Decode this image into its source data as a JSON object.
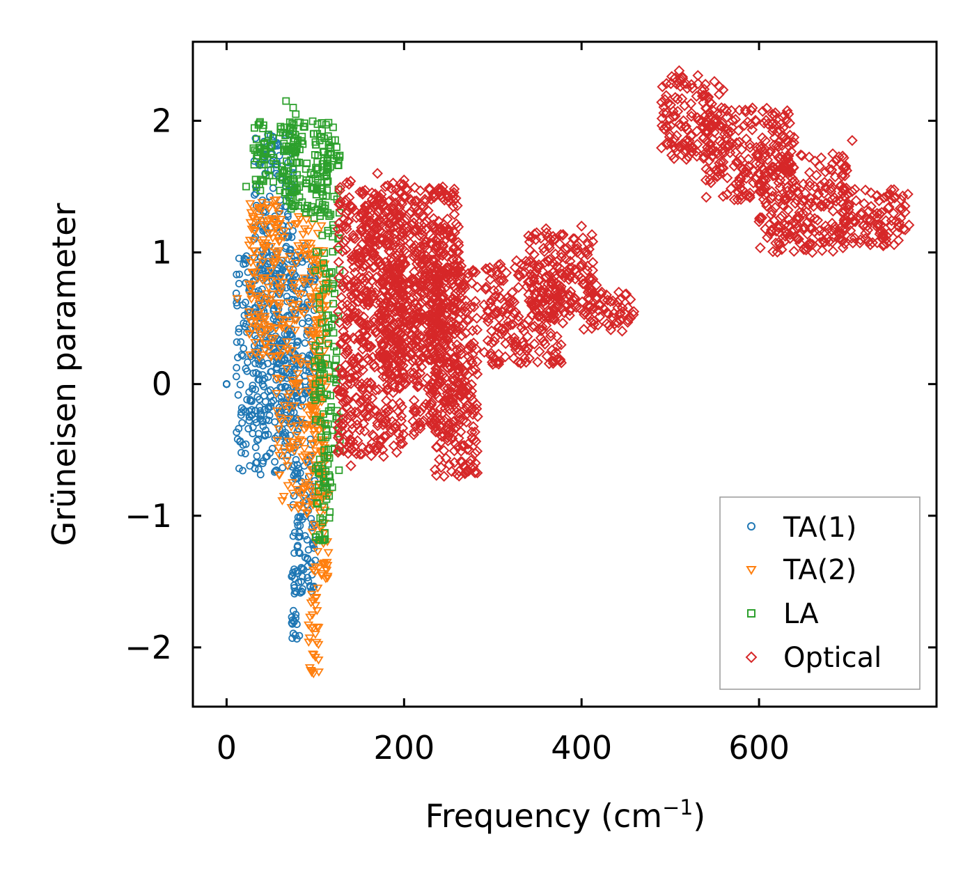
{
  "chart_data": {
    "type": "scatter",
    "title": "",
    "xlabel": "Frequency (cm",
    "xlabel_sup": "−1",
    "xlabel_close": ")",
    "ylabel": "Grüneisen parameter",
    "xlim": [
      -38,
      800
    ],
    "ylim": [
      -2.45,
      2.6
    ],
    "xticks": [
      0,
      200,
      400,
      600
    ],
    "xtick_labels": [
      "0",
      "200",
      "400",
      "600"
    ],
    "yticks": [
      -2,
      -1,
      0,
      1,
      2
    ],
    "ytick_labels": [
      "−2",
      "−1",
      "0",
      "1",
      "2"
    ],
    "legend_position": "lower-right",
    "marker_fill": "none",
    "series": [
      {
        "name": "TA(1)",
        "marker": "circle",
        "color": "#1f77b4",
        "regions": [
          {
            "x": [
              0,
              0
            ],
            "y": [
              0,
              0
            ]
          },
          {
            "x": [
              10,
              80
            ],
            "y": [
              -0.7,
              1.0
            ]
          },
          {
            "x": [
              30,
              75
            ],
            "y": [
              -0.4,
              1.9
            ]
          },
          {
            "x": [
              75,
              100
            ],
            "y": [
              -1.6,
              1.0
            ]
          },
          {
            "x": [
              73,
              82
            ],
            "y": [
              -1.95,
              -1.4
            ]
          }
        ],
        "points": [
          [
            0,
            0
          ],
          [
            12,
            0.65
          ],
          [
            16,
            0.32
          ],
          [
            24,
            0.85
          ],
          [
            26,
            -0.25
          ],
          [
            35,
            1.0
          ],
          [
            38,
            0.2
          ],
          [
            40,
            0.72
          ],
          [
            44,
            -0.35
          ],
          [
            48,
            1.05
          ],
          [
            52,
            1.88
          ],
          [
            58,
            1.82
          ],
          [
            62,
            1.55
          ],
          [
            66,
            1.35
          ],
          [
            70,
            1.12
          ],
          [
            74,
            -1.93
          ],
          [
            76,
            -1.8
          ],
          [
            78,
            -1.75
          ],
          [
            84,
            -1.5
          ],
          [
            88,
            1.05
          ],
          [
            90,
            0.95
          ],
          [
            95,
            0.85
          ],
          [
            98,
            0.4
          ]
        ]
      },
      {
        "name": "TA(2)",
        "marker": "triangle-down",
        "color": "#ff7f0e",
        "regions": [
          {
            "x": [
              25,
              60
            ],
            "y": [
              0.2,
              1.4
            ]
          },
          {
            "x": [
              55,
              110
            ],
            "y": [
              -1.0,
              1.3
            ]
          },
          {
            "x": [
              95,
              115
            ],
            "y": [
              -1.5,
              1.0
            ]
          },
          {
            "x": [
              92,
              104
            ],
            "y": [
              -2.2,
              -1.5
            ]
          }
        ],
        "points": [
          [
            12,
            0.65
          ],
          [
            25,
            0.5
          ],
          [
            40,
            1.38
          ],
          [
            55,
            1.35
          ],
          [
            60,
            1.22
          ],
          [
            80,
            1.22
          ],
          [
            90,
            1.25
          ],
          [
            95,
            -1.85
          ],
          [
            97,
            -2.05
          ],
          [
            98,
            -2.2
          ],
          [
            100,
            -1.9
          ],
          [
            102,
            -1.72
          ]
        ]
      },
      {
        "name": "LA",
        "marker": "square",
        "color": "#2ca02c",
        "regions": [
          {
            "x": [
              30,
              80
            ],
            "y": [
              1.45,
              2.0
            ]
          },
          {
            "x": [
              65,
              115
            ],
            "y": [
              1.3,
              2.0
            ]
          },
          {
            "x": [
              98,
              128
            ],
            "y": [
              -0.8,
              1.95
            ]
          },
          {
            "x": [
              100,
              118
            ],
            "y": [
              -1.2,
              -0.6
            ]
          }
        ],
        "points": [
          [
            22,
            1.5
          ],
          [
            37,
            1.98
          ],
          [
            42,
            1.82
          ],
          [
            53,
            1.72
          ],
          [
            67,
            2.15
          ],
          [
            75,
            2.1
          ],
          [
            78,
            2.05
          ],
          [
            85,
            1.88
          ],
          [
            98,
            1.9
          ],
          [
            105,
            1.85
          ],
          [
            115,
            1.8
          ],
          [
            120,
            1.95
          ]
        ]
      },
      {
        "name": "Optical",
        "marker": "diamond",
        "color": "#d62728",
        "regions": [
          {
            "x": [
              125,
              200
            ],
            "y": [
              -0.55,
              1.55
            ]
          },
          {
            "x": [
              150,
              260
            ],
            "y": [
              0.2,
              1.5
            ]
          },
          {
            "x": [
              175,
              215
            ],
            "y": [
              0.0,
              0.8
            ]
          },
          {
            "x": [
              210,
              265
            ],
            "y": [
              -0.4,
              1.2
            ]
          },
          {
            "x": [
              230,
              283
            ],
            "y": [
              -0.7,
              0.9
            ]
          },
          {
            "x": [
              290,
              380
            ],
            "y": [
              0.15,
              0.95
            ]
          },
          {
            "x": [
              340,
              420
            ],
            "y": [
              0.5,
              1.15
            ]
          },
          {
            "x": [
              400,
              460
            ],
            "y": [
              0.4,
              0.7
            ]
          },
          {
            "x": [
              490,
              560
            ],
            "y": [
              1.7,
              2.35
            ]
          },
          {
            "x": [
              540,
              640
            ],
            "y": [
              1.4,
              2.1
            ]
          },
          {
            "x": [
              600,
              700
            ],
            "y": [
              1.0,
              1.75
            ]
          },
          {
            "x": [
              690,
              770
            ],
            "y": [
              1.05,
              1.5
            ]
          }
        ],
        "points": [
          [
            140,
            -0.62
          ],
          [
            170,
            1.6
          ],
          [
            200,
            1.55
          ],
          [
            235,
            -0.65
          ],
          [
            245,
            -0.7
          ],
          [
            282,
            0.5
          ],
          [
            300,
            0.15
          ],
          [
            360,
            1.18
          ],
          [
            400,
            1.2
          ],
          [
            455,
            0.5
          ],
          [
            510,
            2.38
          ],
          [
            555,
            2.2
          ],
          [
            615,
            2.05
          ],
          [
            705,
            1.85
          ],
          [
            760,
            1.4
          ],
          [
            740,
            1.05
          ],
          [
            660,
            1.0
          ]
        ]
      }
    ]
  }
}
